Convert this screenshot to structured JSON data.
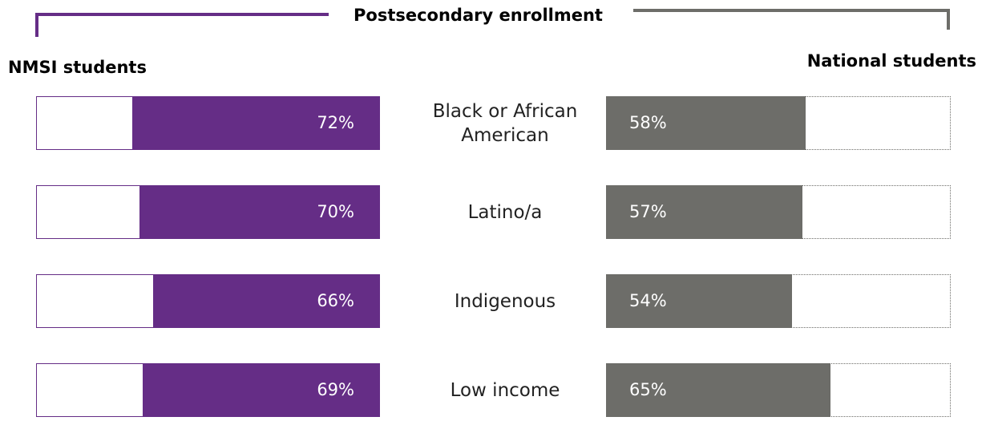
{
  "chart_data": {
    "type": "bar",
    "title": "Postsecondary enrollment",
    "categories": [
      "Black or African American",
      "Latino/a",
      "Indigenous",
      "Low income"
    ],
    "series": [
      {
        "name": "NMSI students",
        "color": "#652d86",
        "values": [
          72,
          70,
          66,
          69
        ],
        "value_labels": [
          "72%",
          "70%",
          "66%",
          "69%"
        ]
      },
      {
        "name": "National students",
        "color": "#6d6d69",
        "values": [
          58,
          57,
          54,
          65
        ],
        "value_labels": [
          "58%",
          "57%",
          "54%",
          "65%"
        ]
      }
    ]
  }
}
